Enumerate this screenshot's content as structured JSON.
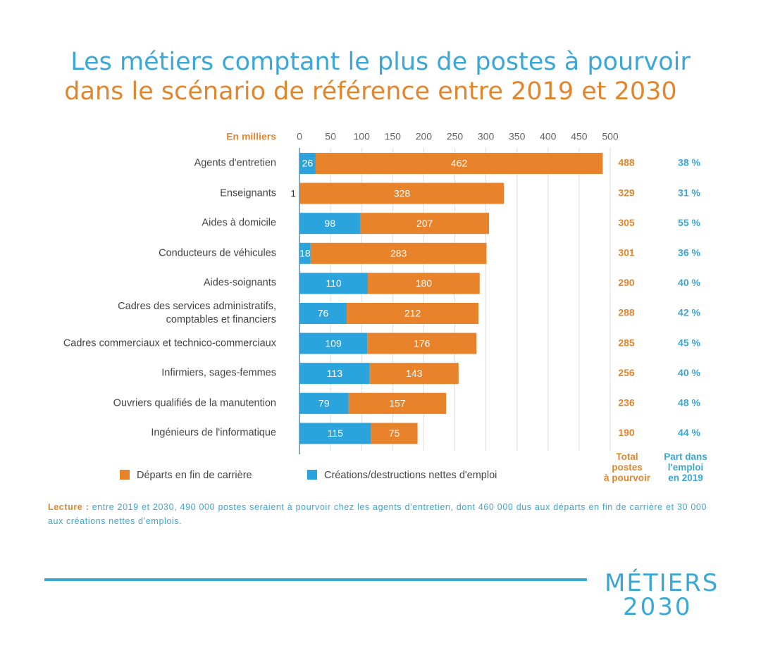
{
  "chart_data": {
    "type": "stacked-barh",
    "title": "Les métiers comptant le plus de postes à pourvoir",
    "subtitle": "dans le scénario de référence entre 2019 et 2030",
    "xlabel": "En milliers",
    "categories": [
      "Agents d'entretien",
      "Enseignants",
      "Aides à domicile",
      "Conducteurs de véhicules",
      "Aides-soignants",
      "Cadres des services administratifs,\ncomptables et financiers",
      "Cadres commerciaux et technico-commerciaux",
      "Infirmiers, sages-femmes",
      "Ouvriers qualifiés de la manutention",
      "Ingénieurs de l'informatique"
    ],
    "series": [
      {
        "name": "Créations/destructions nettes d'emploi",
        "color": "#2ba3dc",
        "values": [
          26,
          1,
          98,
          18,
          110,
          76,
          109,
          113,
          79,
          115
        ]
      },
      {
        "name": "Départs en fin de carrière",
        "color": "#e8822b",
        "values": [
          462,
          328,
          207,
          283,
          180,
          212,
          176,
          143,
          157,
          75
        ]
      }
    ],
    "xlim": [
      0,
      500
    ],
    "xticks": [
      0,
      50,
      100,
      150,
      200,
      250,
      300,
      350,
      400,
      450,
      500
    ],
    "grid": true,
    "totals": {
      "header": "Total\npostes\nà pourvoir",
      "values": [
        488,
        329,
        305,
        301,
        290,
        288,
        285,
        256,
        236,
        190
      ]
    },
    "share": {
      "header": "Part dans\nl'emploi\nen 2019",
      "values": [
        38,
        31,
        55,
        36,
        40,
        42,
        45,
        40,
        48,
        44
      ],
      "value_labels": [
        "38 %",
        "31 %",
        "55 %",
        "36 %",
        "40 %",
        "42 %",
        "45 %",
        "40 %",
        "48 %",
        "44 %"
      ]
    },
    "note_label": "Lecture :",
    "note": "entre 2019 et 2030, 490 000 postes seraient à pourvoir chez les agents d’entretien, dont 460 000 dus aux départs en fin de carrière et 30 000 aux créations nettes d’emplois."
  },
  "logo": {
    "line1": "MÉTIERS",
    "line2": "2030"
  }
}
